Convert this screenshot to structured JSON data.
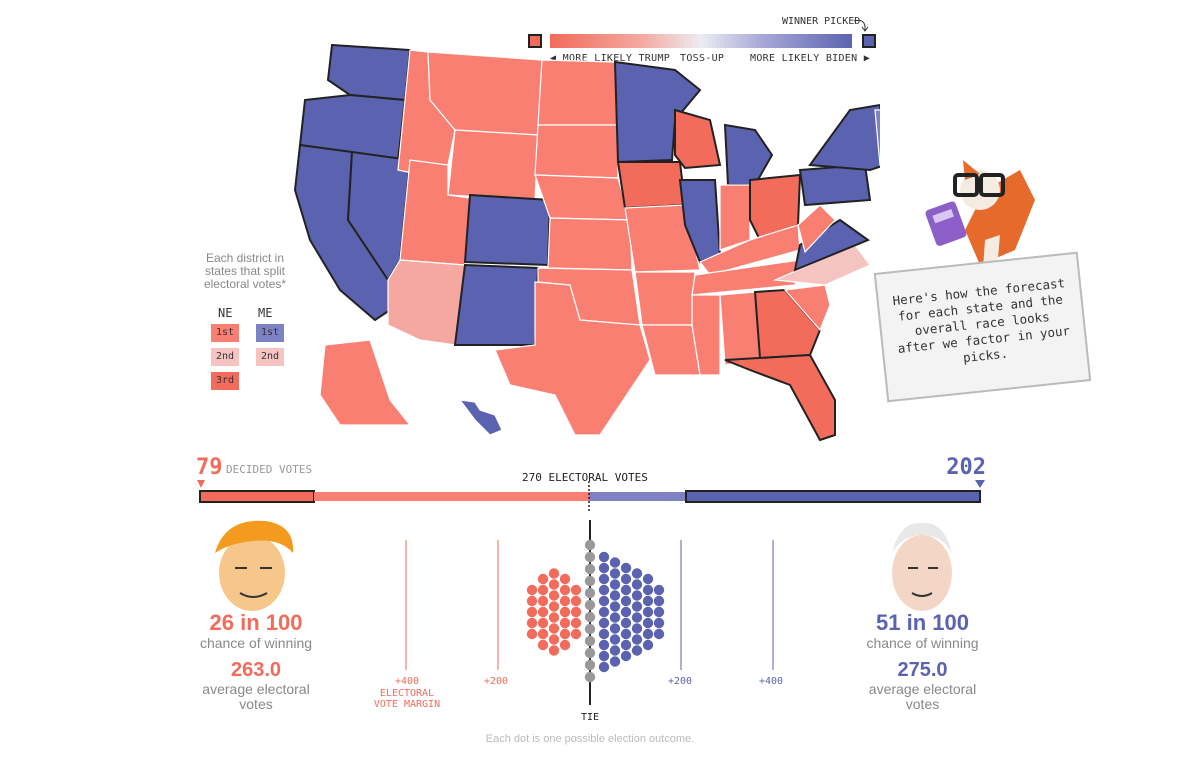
{
  "legend": {
    "winner_picked": "WINNER PICKED",
    "more_likely_trump": "◀ MORE LIKELY TRUMP",
    "toss_up": "TOSS-UP",
    "more_likely_biden": "MORE LIKELY BIDEN ▶",
    "trump_color": "#f26b5b",
    "biden_color": "#5b63b0"
  },
  "district_legend": {
    "note": "Each district in states that split electoral votes*",
    "ne_label": "NE",
    "me_label": "ME",
    "ne": [
      {
        "label": "1st",
        "color": "#f97f72"
      },
      {
        "label": "2nd",
        "color": "#f6c4c0"
      },
      {
        "label": "3rd",
        "color": "#f26b5b"
      }
    ],
    "me": [
      {
        "label": "1st",
        "color": "#7c82c4"
      },
      {
        "label": "2nd",
        "color": "#f6c4c0"
      }
    ]
  },
  "fox": {
    "bubble_text": "Here's how the forecast for each state and the overall race looks after we factor in your picks."
  },
  "bar": {
    "trump_decided": "79",
    "decided_label": "DECIDED VOTES",
    "biden_decided": "202",
    "threshold_label": "270 ELECTORAL VOTES"
  },
  "trump": {
    "chance": "26 in 100",
    "chance_label": "chance of winning",
    "avg_ev": "263.0",
    "avg_ev_label": "average electoral votes"
  },
  "biden": {
    "chance": "51 in 100",
    "chance_label": "chance of winning",
    "avg_ev": "275.0",
    "avg_ev_label": "average electoral votes"
  },
  "dots": {
    "margin_labels": [
      "+400",
      "+200",
      "+200",
      "+400"
    ],
    "axis_title": "ELECTORAL VOTE MARGIN",
    "tie_label": "TIE",
    "footnote": "Each dot is one possible election outcome."
  }
}
